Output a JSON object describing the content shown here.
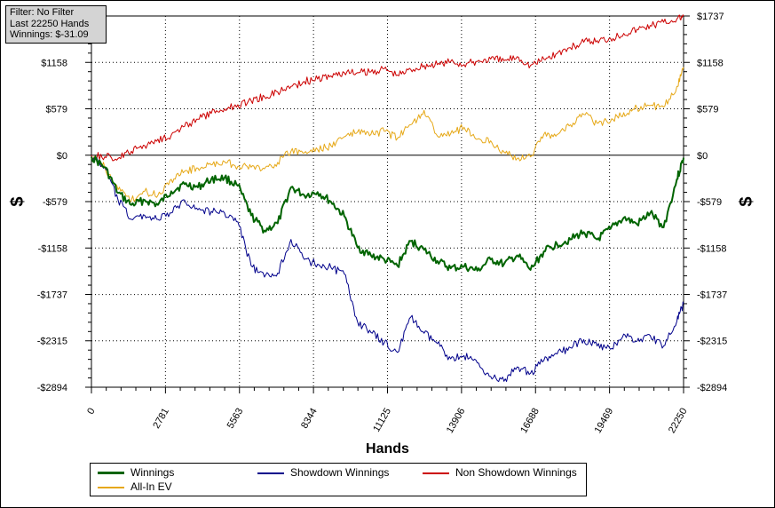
{
  "info": {
    "filter": "Filter: No Filter",
    "last": "Last  22250 Hands",
    "winnings": "Winnings: $-31.09"
  },
  "chart_data": {
    "type": "line",
    "xlabel": "Hands",
    "ylabel": "$",
    "xlim": [
      0,
      22250
    ],
    "ylim": [
      -2894,
      1737
    ],
    "x_ticks": [
      0,
      2781,
      5563,
      8344,
      11125,
      13906,
      16688,
      19469,
      22250
    ],
    "x_tick_labels": [
      "0",
      "2781",
      "5563",
      "8344",
      "11125",
      "13906",
      "16688",
      "19469",
      "22250"
    ],
    "y_ticks": [
      1737,
      1158,
      579,
      0,
      -579,
      -1158,
      -1737,
      -2315,
      -2894
    ],
    "y_tick_labels": [
      "$1737",
      "$1158",
      "$579",
      "$0",
      "-$579",
      "-$1158",
      "-$1737",
      "-$2315",
      "-$2894"
    ],
    "grid": true,
    "legend_position": "bottom",
    "series": [
      {
        "name": "Winnings",
        "color": "#006400",
        "width": 2,
        "x": [
          0,
          500,
          1000,
          1500,
          2000,
          2500,
          3000,
          3500,
          4000,
          4500,
          5000,
          5500,
          6000,
          6500,
          7000,
          7500,
          8000,
          8500,
          9000,
          9500,
          10000,
          10500,
          11000,
          11500,
          12000,
          12500,
          13000,
          13500,
          14000,
          14500,
          15000,
          15500,
          16000,
          16500,
          17000,
          17500,
          18000,
          18500,
          19000,
          19500,
          20000,
          20500,
          21000,
          21500,
          22000,
          22250
        ],
        "y": [
          -20,
          -150,
          -470,
          -620,
          -560,
          -620,
          -450,
          -360,
          -400,
          -300,
          -280,
          -380,
          -750,
          -940,
          -850,
          -400,
          -500,
          -460,
          -580,
          -760,
          -1150,
          -1250,
          -1300,
          -1380,
          -1070,
          -1180,
          -1320,
          -1410,
          -1390,
          -1440,
          -1300,
          -1360,
          -1250,
          -1430,
          -1200,
          -1110,
          -1050,
          -960,
          -1050,
          -920,
          -780,
          -860,
          -720,
          -900,
          -300,
          -31
        ]
      },
      {
        "name": "Showdown Winnings",
        "color": "#00008b",
        "width": 1,
        "x": [
          0,
          500,
          1000,
          1500,
          2000,
          2500,
          3000,
          3500,
          4000,
          4500,
          5000,
          5500,
          6000,
          6500,
          7000,
          7500,
          8000,
          8500,
          9000,
          9500,
          10000,
          10500,
          11000,
          11500,
          12000,
          12500,
          13000,
          13500,
          14000,
          14500,
          15000,
          15500,
          16000,
          16500,
          17000,
          17500,
          18000,
          18500,
          19000,
          19500,
          20000,
          20500,
          21000,
          21500,
          22000,
          22250
        ],
        "y": [
          -20,
          -150,
          -560,
          -800,
          -750,
          -800,
          -720,
          -560,
          -680,
          -700,
          -720,
          -830,
          -1380,
          -1520,
          -1470,
          -1050,
          -1300,
          -1360,
          -1400,
          -1480,
          -2080,
          -2210,
          -2340,
          -2460,
          -2020,
          -2220,
          -2350,
          -2540,
          -2500,
          -2590,
          -2760,
          -2820,
          -2640,
          -2720,
          -2560,
          -2480,
          -2400,
          -2300,
          -2380,
          -2420,
          -2230,
          -2320,
          -2250,
          -2380,
          -2070,
          -1850
        ]
      },
      {
        "name": "Non Showdown Winnings",
        "color": "#cc0000",
        "width": 1,
        "x": [
          0,
          500,
          1000,
          1500,
          2000,
          2500,
          3000,
          3500,
          4000,
          4500,
          5000,
          5500,
          6000,
          6500,
          7000,
          7500,
          8000,
          8500,
          9000,
          9500,
          10000,
          10500,
          11000,
          11500,
          12000,
          12500,
          13000,
          13500,
          14000,
          14500,
          15000,
          15500,
          16000,
          16500,
          17000,
          17500,
          18000,
          18500,
          19000,
          19500,
          20000,
          20500,
          21000,
          21500,
          22000,
          22250
        ],
        "y": [
          0,
          -20,
          -40,
          50,
          120,
          200,
          250,
          360,
          450,
          520,
          580,
          630,
          680,
          730,
          790,
          860,
          920,
          950,
          990,
          1030,
          1030,
          1040,
          1080,
          1000,
          1070,
          1120,
          1130,
          1170,
          1130,
          1170,
          1200,
          1180,
          1230,
          1120,
          1200,
          1270,
          1340,
          1410,
          1430,
          1460,
          1520,
          1570,
          1620,
          1660,
          1700,
          1737
        ]
      },
      {
        "name": "All-In EV",
        "color": "#e6a817",
        "width": 1,
        "x": [
          0,
          500,
          1000,
          1500,
          2000,
          2500,
          3000,
          3500,
          4000,
          4500,
          5000,
          5500,
          6000,
          6500,
          7000,
          7500,
          8000,
          8500,
          9000,
          9500,
          10000,
          10500,
          11000,
          11500,
          12000,
          12500,
          13000,
          13500,
          14000,
          14500,
          15000,
          15500,
          16000,
          16500,
          17000,
          17500,
          18000,
          18500,
          19000,
          19500,
          20000,
          20500,
          21000,
          21500,
          22000,
          22250
        ],
        "y": [
          -20,
          -150,
          -430,
          -560,
          -450,
          -500,
          -300,
          -200,
          -160,
          -120,
          -80,
          -140,
          -150,
          -170,
          -90,
          50,
          30,
          70,
          120,
          230,
          290,
          260,
          300,
          210,
          380,
          560,
          240,
          270,
          350,
          200,
          180,
          40,
          -40,
          -20,
          260,
          260,
          380,
          510,
          400,
          420,
          530,
          590,
          620,
          600,
          860,
          1100
        ]
      }
    ]
  }
}
